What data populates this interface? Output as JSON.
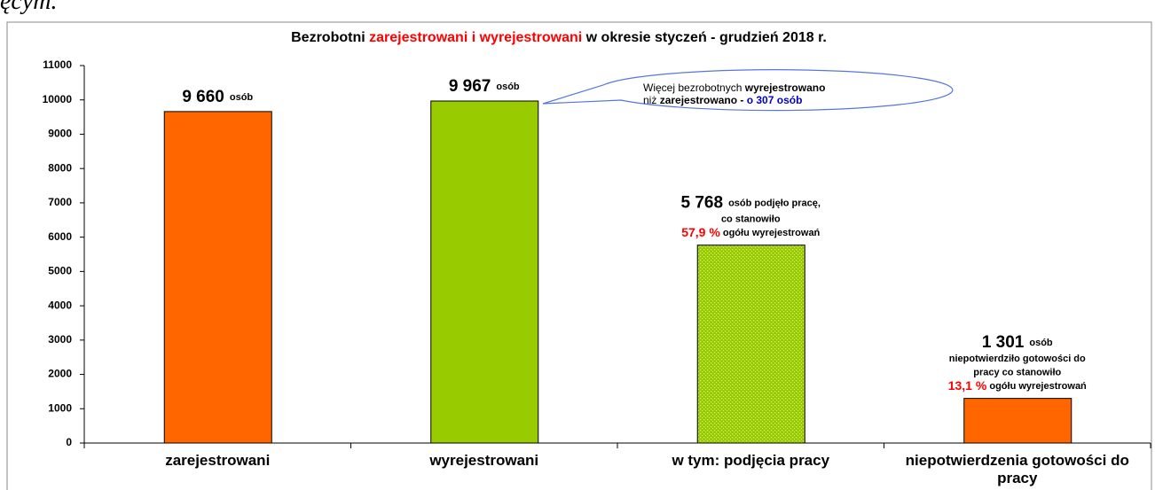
{
  "cropped_text": "ęcym.",
  "chart_data": {
    "type": "bar",
    "title": [
      {
        "text": "Bezrobotni ",
        "color": "#000000"
      },
      {
        "text": "zarejestrowani i wyrejestrowani",
        "color": "#ff0000"
      },
      {
        "text": " w okresie styczeń -  grudzień 2018 r.",
        "color": "#000000"
      }
    ],
    "categories": [
      "zarejestrowani",
      "wyrejestrowani",
      "w tym: podjęcia pracy",
      "niepotwierdzenia gotowości do pracy"
    ],
    "values": [
      9660,
      9967,
      5768,
      1301
    ],
    "value_labels": [
      "9 660",
      "9 967",
      "5 768",
      "1 301"
    ],
    "value_label_suffix": [
      "osób",
      "osób",
      "osób podjęło pracę,",
      "osób"
    ],
    "notes": [
      [],
      [],
      [
        [
          {
            "text": "co stanowiło",
            "color": "#000000"
          }
        ],
        [
          {
            "text": "57,9 %",
            "color": "#ff0000"
          },
          {
            "text": " ogółu wyrejestrowań",
            "color": "#000000"
          }
        ]
      ],
      [
        [
          {
            "text": "niepotwierdziło gotowości do",
            "color": "#000000"
          }
        ],
        [
          {
            "text": "pracy co stanowiło",
            "color": "#000000"
          }
        ],
        [
          {
            "text": "13,1 %",
            "color": "#ff0000"
          },
          {
            "text": " ogółu wyrejestrowań",
            "color": "#000000"
          }
        ]
      ]
    ],
    "colors": [
      "#ff6600",
      "#99cc00",
      "#99cc00",
      "#ff6600"
    ],
    "patterns": [
      null,
      null,
      "dots",
      null
    ],
    "callout": [
      [
        {
          "text": "Więcej bezrobotnych ",
          "color": "#000000",
          "bold": false
        },
        {
          "text": "wyrejestrowano",
          "color": "#000000",
          "bold": true
        }
      ],
      [
        {
          "text": "niż ",
          "color": "#000000",
          "bold": false
        },
        {
          "text": "zarejestrowano -  ",
          "color": "#000000",
          "bold": true
        },
        {
          "text": "o 307 osób",
          "color": "#0000cc",
          "bold": true
        }
      ]
    ],
    "ylim": [
      0,
      11000
    ],
    "yticks": [
      0,
      1000,
      2000,
      3000,
      4000,
      5000,
      6000,
      7000,
      8000,
      9000,
      10000,
      11000
    ],
    "grid": false
  }
}
